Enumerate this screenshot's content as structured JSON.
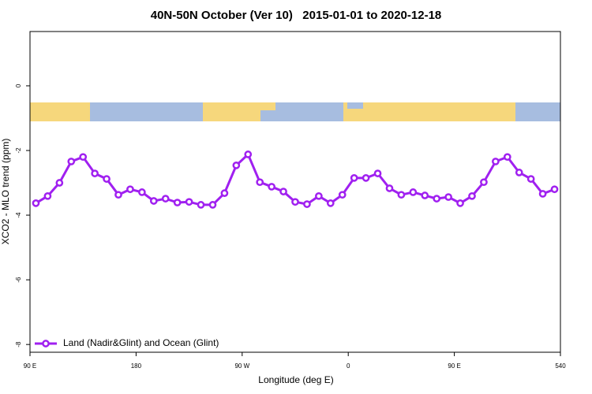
{
  "chart_data": {
    "type": "line",
    "title": "40N-50N October (Ver 10)   2015-01-01 to 2020-12-18",
    "xlabel": "Longitude (deg E)",
    "ylabel": "XCO2 - MLO trend (ppm)",
    "x": [
      95,
      105,
      115,
      125,
      135,
      145,
      155,
      165,
      175,
      185,
      195,
      205,
      215,
      225,
      235,
      245,
      255,
      265,
      275,
      285,
      295,
      305,
      315,
      325,
      335,
      345,
      355,
      365,
      375,
      385,
      395,
      405,
      415,
      425,
      435,
      445,
      455,
      465,
      475,
      485,
      495,
      505,
      515,
      525,
      535
    ],
    "series": [
      {
        "name": "Land (Nadir&Glint) and Ocean (Glint)",
        "color": "#a020f0",
        "values": [
          -3.63,
          -3.41,
          -3.0,
          -2.34,
          -2.2,
          -2.71,
          -2.88,
          -3.37,
          -3.2,
          -3.29,
          -3.56,
          -3.49,
          -3.61,
          -3.59,
          -3.68,
          -3.68,
          -3.32,
          -2.46,
          -2.12,
          -2.98,
          -3.12,
          -3.27,
          -3.59,
          -3.66,
          -3.41,
          -3.63,
          -3.37,
          -2.85,
          -2.85,
          -2.71,
          -3.17,
          -3.37,
          -3.29,
          -3.39,
          -3.49,
          -3.44,
          -3.63,
          -3.41,
          -2.98,
          -2.34,
          -2.2,
          -2.68,
          -2.88,
          -3.34,
          -3.2
        ]
      }
    ],
    "xlim": [
      90,
      540
    ],
    "xticks": [
      {
        "value": 90,
        "label": "90 E"
      },
      180,
      {
        "value": 270,
        "label": "90 W"
      },
      {
        "value": 360,
        "label": "0"
      },
      {
        "value": 450,
        "label": "90 E"
      },
      540
    ],
    "ylim": [
      -8.24,
      1.68
    ],
    "yticks": [
      -8,
      -6,
      -4,
      -2,
      0
    ],
    "legend": "bottom-left"
  }
}
